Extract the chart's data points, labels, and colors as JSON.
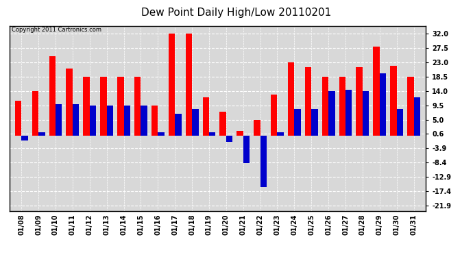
{
  "title": "Dew Point Daily High/Low 20110201",
  "copyright": "Copyright 2011 Cartronics.com",
  "dates": [
    "01/08",
    "01/09",
    "01/10",
    "01/11",
    "01/12",
    "01/13",
    "01/14",
    "01/15",
    "01/16",
    "01/17",
    "01/18",
    "01/19",
    "01/20",
    "01/21",
    "01/22",
    "01/23",
    "01/24",
    "01/25",
    "01/26",
    "01/27",
    "01/28",
    "01/29",
    "01/30",
    "01/31"
  ],
  "highs": [
    11.0,
    14.0,
    25.0,
    21.0,
    18.5,
    18.5,
    18.5,
    18.5,
    9.5,
    32.0,
    32.0,
    12.0,
    7.5,
    1.5,
    5.0,
    13.0,
    23.0,
    21.5,
    18.5,
    18.5,
    21.5,
    28.0,
    22.0,
    18.5
  ],
  "lows": [
    -1.5,
    1.0,
    10.0,
    10.0,
    9.5,
    9.5,
    9.5,
    9.5,
    1.0,
    7.0,
    8.5,
    1.0,
    -2.0,
    -8.5,
    -16.0,
    1.0,
    8.5,
    8.5,
    14.0,
    14.5,
    14.0,
    19.5,
    8.5,
    12.0
  ],
  "bar_width": 0.38,
  "high_color": "#ff0000",
  "low_color": "#0000cc",
  "background_color": "#ffffff",
  "plot_bg_color": "#d8d8d8",
  "grid_color": "#ffffff",
  "yticks": [
    32.0,
    27.5,
    23.0,
    18.5,
    14.0,
    9.5,
    5.0,
    0.6,
    -3.9,
    -8.4,
    -12.9,
    -17.4,
    -21.9
  ],
  "ylim": [
    -23.5,
    34.5
  ],
  "title_fontsize": 11,
  "tick_fontsize": 7,
  "copyright_fontsize": 6
}
